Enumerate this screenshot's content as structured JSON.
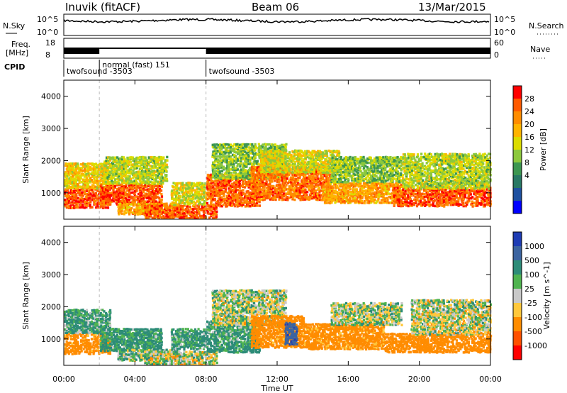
{
  "header": {
    "radar": "Inuvik (fitACF)",
    "beam": "Beam 06",
    "date": "13/Mar/2015"
  },
  "status_panels": {
    "nsky": {
      "label": "N.Sky",
      "ticks": [
        "10^5",
        "10^0"
      ],
      "right_label": "N.Search",
      "right_ticks": [
        "10^5",
        "10^0"
      ]
    },
    "freq": {
      "label_line1": "Freq.",
      "label_line2": "[MHz]",
      "ticks": [
        "18",
        "8"
      ],
      "right_label": "Nave",
      "right_ticks": [
        "60",
        "0"
      ]
    },
    "cpid": {
      "label": "CPID",
      "segments": [
        {
          "start_hour": 0,
          "end_hour": 2,
          "text": "twofsound -3503",
          "row": 2
        },
        {
          "start_hour": 2,
          "end_hour": 8,
          "text": "normal (fast) 151",
          "row": 1
        },
        {
          "start_hour": 8,
          "end_hour": 24,
          "text": "twofsound -3503",
          "row": 2
        }
      ]
    }
  },
  "chart_data": [
    {
      "type": "heatmap",
      "parameter": "power",
      "title": "",
      "xlabel": "",
      "ylabel": "Slant Range [km]",
      "x_hours": [
        0,
        24
      ],
      "y_km": [
        180,
        4500
      ],
      "yticks": [
        1000,
        2000,
        3000,
        4000
      ],
      "colorbar": {
        "label": "Power [dB]",
        "ticks": [
          "28",
          "24",
          "20",
          "16",
          "12",
          "8",
          "4"
        ],
        "colors": [
          "#ff0000",
          "#ff5a00",
          "#ff8c00",
          "#ffb400",
          "#dcdc00",
          "#8cc83c",
          "#3c9650",
          "#287864",
          "#1e50a0",
          "#0000ff"
        ]
      },
      "echo_regions": [
        {
          "t0": 0.0,
          "t1": 2.6,
          "r0": 500,
          "r1": 1150,
          "value": 27
        },
        {
          "t0": 0.0,
          "t1": 2.6,
          "r0": 1100,
          "r1": 1900,
          "value": 16
        },
        {
          "t0": 2.0,
          "t1": 5.5,
          "r0": 600,
          "r1": 1250,
          "value": 26
        },
        {
          "t0": 2.2,
          "t1": 5.8,
          "r0": 1250,
          "r1": 2100,
          "value": 12
        },
        {
          "t0": 3.0,
          "t1": 6.5,
          "r0": 300,
          "r1": 650,
          "value": 20
        },
        {
          "t0": 4.5,
          "t1": 8.6,
          "r0": 180,
          "r1": 600,
          "value": 26
        },
        {
          "t0": 6.0,
          "t1": 8.0,
          "r0": 600,
          "r1": 1300,
          "value": 14
        },
        {
          "t0": 8.0,
          "t1": 11.0,
          "r0": 550,
          "r1": 1550,
          "value": 25
        },
        {
          "t0": 8.3,
          "t1": 12.5,
          "r0": 1400,
          "r1": 2500,
          "value": 10
        },
        {
          "t0": 10.5,
          "t1": 15.0,
          "r0": 750,
          "r1": 1800,
          "value": 24
        },
        {
          "t0": 11.0,
          "t1": 15.5,
          "r0": 1600,
          "r1": 2300,
          "value": 14
        },
        {
          "t0": 14.5,
          "t1": 19.0,
          "r0": 650,
          "r1": 1300,
          "value": 20
        },
        {
          "t0": 15.0,
          "t1": 19.0,
          "r0": 1300,
          "r1": 2100,
          "value": 10
        },
        {
          "t0": 18.5,
          "t1": 24.0,
          "r0": 550,
          "r1": 1150,
          "value": 26
        },
        {
          "t0": 19.0,
          "t1": 24.0,
          "r0": 1100,
          "r1": 2200,
          "value": 12
        }
      ]
    },
    {
      "type": "heatmap",
      "parameter": "velocity",
      "title": "",
      "xlabel": "Time UT",
      "ylabel": "Slant Range [km]",
      "x_hours": [
        0,
        24
      ],
      "y_km": [
        180,
        4500
      ],
      "yticks": [
        1000,
        2000,
        3000,
        4000
      ],
      "xticks": [
        "00:00",
        "04:00",
        "08:00",
        "12:00",
        "16:00",
        "20:00",
        "00:00"
      ],
      "colorbar": {
        "label": "Velocity [m s^-1]",
        "ticks": [
          "1000",
          "500",
          "100",
          "25",
          "-25",
          "-100",
          "-500",
          "-1000"
        ],
        "colors": [
          "#1e3cb4",
          "#3c64a0",
          "#2d8c78",
          "#50b450",
          "#c8c8c8",
          "#ffc83c",
          "#ff8c00",
          "#ff5000",
          "#ff0000"
        ]
      },
      "echo_regions": [
        {
          "t0": 0.0,
          "t1": 2.6,
          "r0": 500,
          "r1": 1150,
          "value": -200
        },
        {
          "t0": 0.0,
          "t1": 2.6,
          "r0": 1150,
          "r1": 1900,
          "value": 120
        },
        {
          "t0": 2.0,
          "t1": 5.5,
          "r0": 600,
          "r1": 1300,
          "value": 150
        },
        {
          "t0": 3.0,
          "t1": 6.5,
          "r0": 300,
          "r1": 650,
          "value": 60
        },
        {
          "t0": 4.5,
          "t1": 8.6,
          "r0": 180,
          "r1": 600,
          "value": 0
        },
        {
          "t0": 6.0,
          "t1": 8.0,
          "r0": 650,
          "r1": 1300,
          "value": 130
        },
        {
          "t0": 8.0,
          "t1": 11.0,
          "r0": 550,
          "r1": 1550,
          "value": 140
        },
        {
          "t0": 8.3,
          "t1": 12.5,
          "r0": 1400,
          "r1": 2500,
          "value": 20
        },
        {
          "t0": 10.5,
          "t1": 13.5,
          "r0": 700,
          "r1": 1700,
          "value": -220
        },
        {
          "t0": 12.4,
          "t1": 13.1,
          "r0": 800,
          "r1": 1500,
          "value": 900
        },
        {
          "t0": 13.5,
          "t1": 18.0,
          "r0": 650,
          "r1": 1450,
          "value": -200
        },
        {
          "t0": 15.0,
          "t1": 19.0,
          "r0": 1400,
          "r1": 2100,
          "value": 20
        },
        {
          "t0": 18.0,
          "t1": 24.0,
          "r0": 550,
          "r1": 1150,
          "value": -300
        },
        {
          "t0": 19.5,
          "t1": 24.0,
          "r0": 1100,
          "r1": 2200,
          "value": 0
        }
      ]
    }
  ]
}
